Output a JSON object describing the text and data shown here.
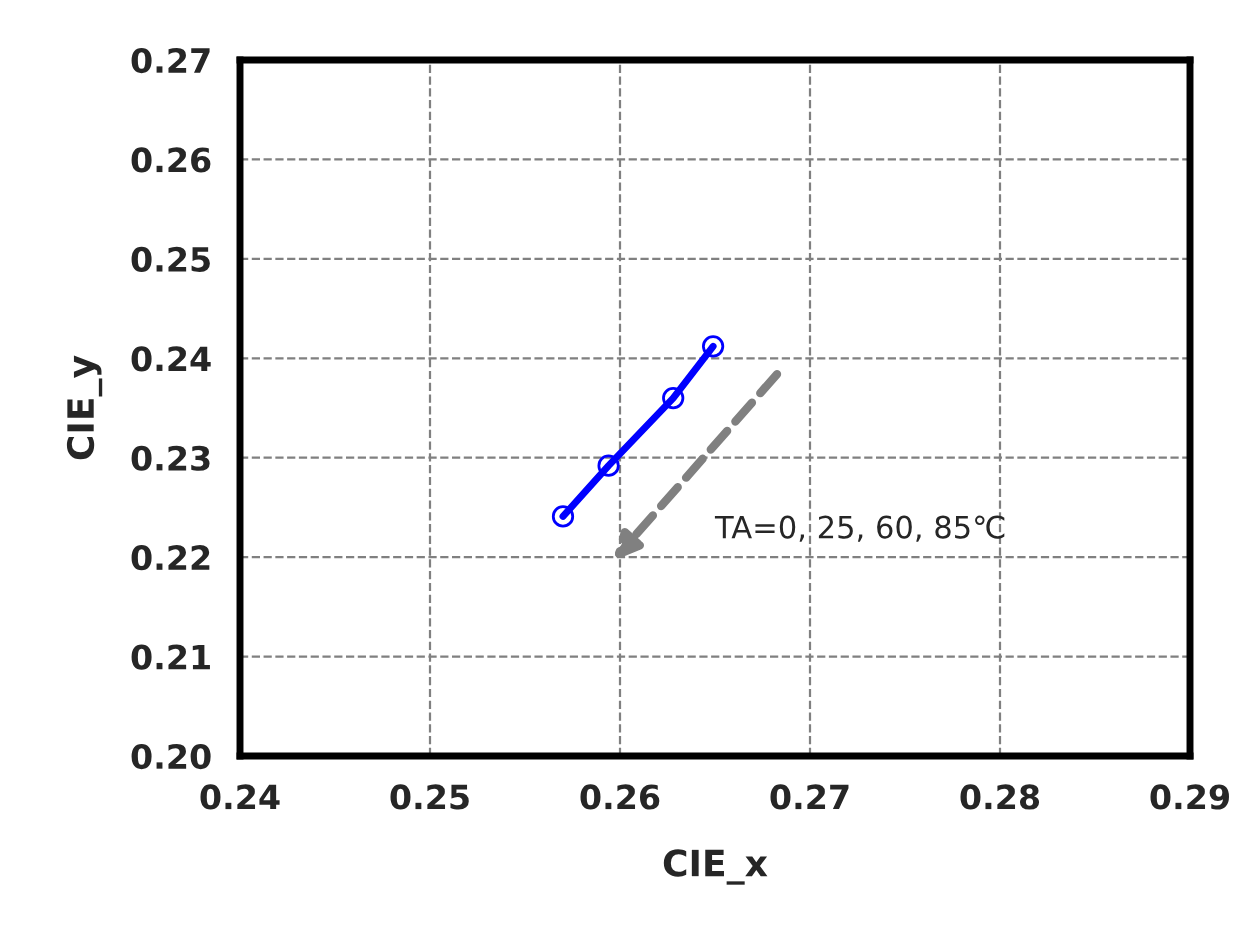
{
  "chart_data": {
    "type": "line",
    "xlabel": "CIE_x",
    "ylabel": "CIE_y",
    "x": [
      0.257,
      0.2594,
      0.2628,
      0.2649
    ],
    "series": [
      {
        "color": "#0000ff",
        "values": [
          0.2241,
          0.2292,
          0.236,
          0.2412
        ]
      }
    ],
    "xlim": [
      0.24,
      0.29
    ],
    "xticks": [
      {
        "value": 0.24,
        "label": "0.24"
      },
      {
        "value": 0.25,
        "label": "0.25"
      },
      {
        "value": 0.26,
        "label": "0.26"
      },
      {
        "value": 0.27,
        "label": "0.27"
      },
      {
        "value": 0.28,
        "label": "0.28"
      },
      {
        "value": 0.29,
        "label": "0.29"
      }
    ],
    "ylim": [
      0.2,
      0.27
    ],
    "yticks": [
      {
        "value": 0.2,
        "label": "0.20"
      },
      {
        "value": 0.21,
        "label": "0.21"
      },
      {
        "value": 0.22,
        "label": "0.22"
      },
      {
        "value": 0.23,
        "label": "0.23"
      },
      {
        "value": 0.24,
        "label": "0.24"
      },
      {
        "value": 0.25,
        "label": "0.25"
      },
      {
        "value": 0.26,
        "label": "0.26"
      },
      {
        "value": 0.27,
        "label": "0.27"
      }
    ],
    "annotations": [
      "TA=0, 25, 60, 85℃"
    ],
    "grid": true,
    "marker": "circle",
    "line_style": "solid",
    "legend": false
  }
}
